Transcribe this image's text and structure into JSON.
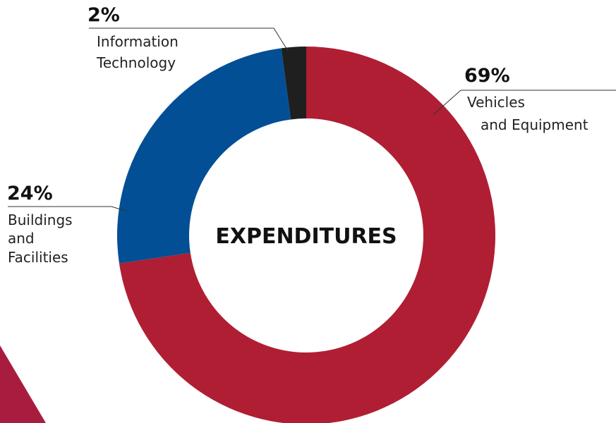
{
  "chart_data": {
    "type": "pie",
    "title": "EXPENDITURES",
    "categories": [
      "Vehicles and Equipment",
      "Buildings and Facilities",
      "Information Technology"
    ],
    "values": [
      69,
      24,
      2
    ],
    "series": [
      {
        "values": [
          69,
          24,
          2
        ]
      }
    ],
    "colors": [
      "#b01e34",
      "#034f95",
      "#1f1f1f"
    ],
    "labels": [
      {
        "percent": "69%",
        "lines": [
          "Vehicles",
          "and Equipment"
        ]
      },
      {
        "percent": "24%",
        "lines": [
          "Buildings",
          "and",
          "Facilities"
        ]
      },
      {
        "percent": "2%",
        "lines": [
          "Information",
          "Technology"
        ]
      }
    ]
  },
  "decor": {
    "corner_color": "#a81d3f"
  }
}
